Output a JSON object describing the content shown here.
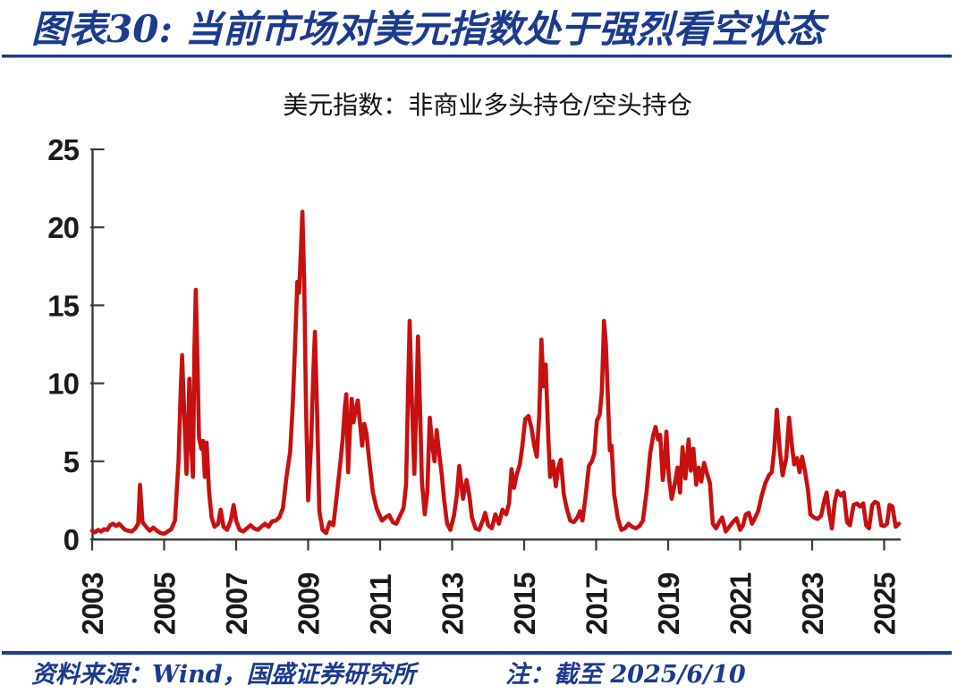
{
  "header": {
    "title_prefix": "图表30:",
    "title": "当前市场对美元指数处于强烈看空状态"
  },
  "footer": {
    "source": "资料来源：Wind，国盛证券研究所",
    "note": "注：截至 2025/6/10"
  },
  "colors": {
    "accent_blue": "#1C3A8E",
    "line_red": "#C81010",
    "axis_gray": "#3A3A3A",
    "tick_text": "#1A1A1A"
  },
  "chart_data": {
    "type": "line",
    "title": "美元指数：非商业多头持仓/空头持仓",
    "xlabel": "",
    "ylabel": "",
    "xlim": [
      2003,
      2025.46
    ],
    "ylim": [
      0,
      25
    ],
    "grid": false,
    "legend": "none",
    "x_tick_rotation": 90,
    "x_ticks": [
      {
        "value": 2003,
        "label": "2003"
      },
      {
        "value": 2005,
        "label": "2005"
      },
      {
        "value": 2007,
        "label": "2007"
      },
      {
        "value": 2009,
        "label": "2009"
      },
      {
        "value": 2011,
        "label": "2011"
      },
      {
        "value": 2013,
        "label": "2013"
      },
      {
        "value": 2015,
        "label": "2015"
      },
      {
        "value": 2017,
        "label": "2017"
      },
      {
        "value": 2019,
        "label": "2019"
      },
      {
        "value": 2021,
        "label": "2021"
      },
      {
        "value": 2023,
        "label": "2023"
      },
      {
        "value": 2025,
        "label": "2025"
      }
    ],
    "y_ticks": [
      {
        "value": 0,
        "label": "0"
      },
      {
        "value": 5,
        "label": "5"
      },
      {
        "value": 10,
        "label": "10"
      },
      {
        "value": 15,
        "label": "15"
      },
      {
        "value": 20,
        "label": "20"
      },
      {
        "value": 25,
        "label": "25"
      }
    ],
    "series": [
      {
        "name": "美元指数：非商业多头持仓/空头持仓",
        "color": "#C81010",
        "points": [
          [
            2003.0,
            0.55
          ],
          [
            2003.08,
            0.45
          ],
          [
            2003.17,
            0.6
          ],
          [
            2003.25,
            0.5
          ],
          [
            2003.33,
            0.65
          ],
          [
            2003.42,
            0.6
          ],
          [
            2003.5,
            0.9
          ],
          [
            2003.58,
            1.0
          ],
          [
            2003.67,
            0.85
          ],
          [
            2003.75,
            1.0
          ],
          [
            2003.83,
            0.8
          ],
          [
            2003.92,
            0.6
          ],
          [
            2004.0,
            0.55
          ],
          [
            2004.1,
            0.5
          ],
          [
            2004.2,
            0.7
          ],
          [
            2004.28,
            1.0
          ],
          [
            2004.33,
            3.5
          ],
          [
            2004.4,
            1.1
          ],
          [
            2004.5,
            0.8
          ],
          [
            2004.6,
            0.55
          ],
          [
            2004.7,
            0.75
          ],
          [
            2004.8,
            0.55
          ],
          [
            2004.9,
            0.4
          ],
          [
            2005.0,
            0.35
          ],
          [
            2005.1,
            0.5
          ],
          [
            2005.2,
            0.65
          ],
          [
            2005.3,
            1.2
          ],
          [
            2005.4,
            5.0
          ],
          [
            2005.46,
            9.5
          ],
          [
            2005.5,
            11.8
          ],
          [
            2005.56,
            8.0
          ],
          [
            2005.62,
            4.2
          ],
          [
            2005.66,
            6.5
          ],
          [
            2005.7,
            10.3
          ],
          [
            2005.75,
            6.2
          ],
          [
            2005.8,
            4.0
          ],
          [
            2005.84,
            12.0
          ],
          [
            2005.88,
            16.0
          ],
          [
            2005.93,
            11.0
          ],
          [
            2005.97,
            6.5
          ],
          [
            2006.03,
            5.8
          ],
          [
            2006.08,
            6.3
          ],
          [
            2006.13,
            4.0
          ],
          [
            2006.18,
            6.2
          ],
          [
            2006.25,
            3.0
          ],
          [
            2006.32,
            1.4
          ],
          [
            2006.4,
            0.8
          ],
          [
            2006.5,
            1.0
          ],
          [
            2006.57,
            1.9
          ],
          [
            2006.65,
            0.8
          ],
          [
            2006.75,
            0.6
          ],
          [
            2006.85,
            1.2
          ],
          [
            2006.93,
            2.2
          ],
          [
            2007.0,
            1.2
          ],
          [
            2007.1,
            0.6
          ],
          [
            2007.2,
            0.5
          ],
          [
            2007.3,
            0.7
          ],
          [
            2007.4,
            0.9
          ],
          [
            2007.5,
            0.7
          ],
          [
            2007.6,
            0.6
          ],
          [
            2007.7,
            0.8
          ],
          [
            2007.8,
            1.0
          ],
          [
            2007.9,
            0.8
          ],
          [
            2008.0,
            1.15
          ],
          [
            2008.1,
            1.2
          ],
          [
            2008.2,
            1.4
          ],
          [
            2008.3,
            2.0
          ],
          [
            2008.4,
            4.0
          ],
          [
            2008.5,
            5.6
          ],
          [
            2008.57,
            8.5
          ],
          [
            2008.63,
            12.0
          ],
          [
            2008.7,
            16.5
          ],
          [
            2008.75,
            15.8
          ],
          [
            2008.8,
            18.5
          ],
          [
            2008.84,
            21.0
          ],
          [
            2008.89,
            16.5
          ],
          [
            2008.94,
            8.5
          ],
          [
            2009.0,
            2.5
          ],
          [
            2009.08,
            6.0
          ],
          [
            2009.15,
            11.0
          ],
          [
            2009.19,
            13.3
          ],
          [
            2009.25,
            8.0
          ],
          [
            2009.31,
            1.8
          ],
          [
            2009.4,
            0.6
          ],
          [
            2009.5,
            0.4
          ],
          [
            2009.6,
            1.1
          ],
          [
            2009.7,
            0.9
          ],
          [
            2009.8,
            2.9
          ],
          [
            2009.9,
            5.0
          ],
          [
            2009.96,
            6.4
          ],
          [
            2010.02,
            8.5
          ],
          [
            2010.06,
            9.3
          ],
          [
            2010.11,
            4.3
          ],
          [
            2010.16,
            7.0
          ],
          [
            2010.21,
            9.0
          ],
          [
            2010.26,
            7.5
          ],
          [
            2010.32,
            8.3
          ],
          [
            2010.38,
            8.9
          ],
          [
            2010.45,
            7.2
          ],
          [
            2010.5,
            6.0
          ],
          [
            2010.56,
            7.4
          ],
          [
            2010.62,
            6.8
          ],
          [
            2010.7,
            5.0
          ],
          [
            2010.8,
            3.0
          ],
          [
            2010.9,
            2.0
          ],
          [
            2010.97,
            1.6
          ],
          [
            2011.05,
            1.2
          ],
          [
            2011.15,
            1.4
          ],
          [
            2011.25,
            1.55
          ],
          [
            2011.35,
            1.1
          ],
          [
            2011.45,
            1.0
          ],
          [
            2011.55,
            1.5
          ],
          [
            2011.65,
            2.0
          ],
          [
            2011.72,
            3.5
          ],
          [
            2011.78,
            10.0
          ],
          [
            2011.82,
            14.0
          ],
          [
            2011.88,
            9.0
          ],
          [
            2011.95,
            4.2
          ],
          [
            2012.0,
            8.0
          ],
          [
            2012.05,
            13.0
          ],
          [
            2012.1,
            9.0
          ],
          [
            2012.16,
            3.7
          ],
          [
            2012.24,
            1.6
          ],
          [
            2012.31,
            3.0
          ],
          [
            2012.38,
            7.8
          ],
          [
            2012.45,
            6.0
          ],
          [
            2012.51,
            5.0
          ],
          [
            2012.57,
            7.0
          ],
          [
            2012.64,
            5.5
          ],
          [
            2012.71,
            4.2
          ],
          [
            2012.78,
            2.5
          ],
          [
            2012.86,
            1.0
          ],
          [
            2012.95,
            0.6
          ],
          [
            2013.05,
            1.5
          ],
          [
            2013.13,
            2.8
          ],
          [
            2013.2,
            4.7
          ],
          [
            2013.3,
            2.6
          ],
          [
            2013.4,
            3.8
          ],
          [
            2013.48,
            2.8
          ],
          [
            2013.55,
            1.4
          ],
          [
            2013.65,
            0.7
          ],
          [
            2013.75,
            0.6
          ],
          [
            2013.85,
            1.2
          ],
          [
            2013.92,
            1.7
          ],
          [
            2014.0,
            0.9
          ],
          [
            2014.1,
            0.7
          ],
          [
            2014.2,
            1.6
          ],
          [
            2014.3,
            1.0
          ],
          [
            2014.4,
            1.9
          ],
          [
            2014.5,
            1.6
          ],
          [
            2014.58,
            2.3
          ],
          [
            2014.65,
            4.5
          ],
          [
            2014.72,
            3.3
          ],
          [
            2014.8,
            4.2
          ],
          [
            2014.88,
            4.8
          ],
          [
            2014.95,
            6.0
          ],
          [
            2015.03,
            7.7
          ],
          [
            2015.12,
            7.9
          ],
          [
            2015.2,
            7.2
          ],
          [
            2015.28,
            6.0
          ],
          [
            2015.35,
            5.3
          ],
          [
            2015.42,
            8.0
          ],
          [
            2015.48,
            12.8
          ],
          [
            2015.54,
            9.8
          ],
          [
            2015.6,
            11.2
          ],
          [
            2015.67,
            6.5
          ],
          [
            2015.72,
            4.0
          ],
          [
            2015.8,
            5.0
          ],
          [
            2015.88,
            3.4
          ],
          [
            2015.95,
            4.6
          ],
          [
            2016.02,
            5.1
          ],
          [
            2016.1,
            2.9
          ],
          [
            2016.18,
            2.0
          ],
          [
            2016.28,
            1.2
          ],
          [
            2016.38,
            1.1
          ],
          [
            2016.48,
            1.4
          ],
          [
            2016.55,
            1.8
          ],
          [
            2016.62,
            1.2
          ],
          [
            2016.7,
            2.6
          ],
          [
            2016.8,
            4.7
          ],
          [
            2016.88,
            5.0
          ],
          [
            2016.95,
            5.5
          ],
          [
            2017.02,
            7.6
          ],
          [
            2017.1,
            8.0
          ],
          [
            2017.16,
            9.5
          ],
          [
            2017.22,
            14.0
          ],
          [
            2017.27,
            12.5
          ],
          [
            2017.33,
            8.8
          ],
          [
            2017.38,
            5.7
          ],
          [
            2017.43,
            6.0
          ],
          [
            2017.5,
            2.9
          ],
          [
            2017.6,
            1.4
          ],
          [
            2017.7,
            0.6
          ],
          [
            2017.8,
            0.7
          ],
          [
            2017.9,
            1.0
          ],
          [
            2018.0,
            0.8
          ],
          [
            2018.1,
            0.7
          ],
          [
            2018.2,
            0.85
          ],
          [
            2018.3,
            1.2
          ],
          [
            2018.4,
            3.0
          ],
          [
            2018.5,
            5.5
          ],
          [
            2018.58,
            6.6
          ],
          [
            2018.65,
            7.2
          ],
          [
            2018.72,
            6.4
          ],
          [
            2018.78,
            6.7
          ],
          [
            2018.85,
            3.8
          ],
          [
            2018.9,
            4.8
          ],
          [
            2018.95,
            6.9
          ],
          [
            2019.02,
            4.0
          ],
          [
            2019.1,
            2.6
          ],
          [
            2019.18,
            3.5
          ],
          [
            2019.26,
            4.6
          ],
          [
            2019.33,
            3.0
          ],
          [
            2019.4,
            5.9
          ],
          [
            2019.48,
            3.9
          ],
          [
            2019.57,
            6.4
          ],
          [
            2019.63,
            4.4
          ],
          [
            2019.7,
            5.8
          ],
          [
            2019.78,
            3.5
          ],
          [
            2019.85,
            4.6
          ],
          [
            2019.92,
            3.7
          ],
          [
            2020.0,
            4.9
          ],
          [
            2020.08,
            4.2
          ],
          [
            2020.16,
            3.6
          ],
          [
            2020.24,
            1.0
          ],
          [
            2020.33,
            0.7
          ],
          [
            2020.42,
            1.1
          ],
          [
            2020.5,
            1.4
          ],
          [
            2020.6,
            0.5
          ],
          [
            2020.7,
            0.8
          ],
          [
            2020.8,
            1.1
          ],
          [
            2020.9,
            1.35
          ],
          [
            2021.0,
            0.6
          ],
          [
            2021.08,
            0.9
          ],
          [
            2021.16,
            1.6
          ],
          [
            2021.24,
            1.7
          ],
          [
            2021.33,
            1.0
          ],
          [
            2021.42,
            1.4
          ],
          [
            2021.5,
            1.8
          ],
          [
            2021.6,
            2.8
          ],
          [
            2021.7,
            3.6
          ],
          [
            2021.8,
            4.1
          ],
          [
            2021.88,
            4.3
          ],
          [
            2021.95,
            5.8
          ],
          [
            2022.02,
            8.3
          ],
          [
            2022.1,
            5.7
          ],
          [
            2022.18,
            4.1
          ],
          [
            2022.28,
            5.2
          ],
          [
            2022.36,
            7.8
          ],
          [
            2022.44,
            6.0
          ],
          [
            2022.5,
            4.8
          ],
          [
            2022.58,
            5.2
          ],
          [
            2022.65,
            4.3
          ],
          [
            2022.72,
            5.3
          ],
          [
            2022.8,
            4.4
          ],
          [
            2022.88,
            3.2
          ],
          [
            2022.95,
            1.6
          ],
          [
            2023.05,
            1.4
          ],
          [
            2023.15,
            1.3
          ],
          [
            2023.25,
            1.5
          ],
          [
            2023.33,
            2.4
          ],
          [
            2023.4,
            3.0
          ],
          [
            2023.48,
            1.6
          ],
          [
            2023.55,
            0.7
          ],
          [
            2023.63,
            2.4
          ],
          [
            2023.7,
            3.1
          ],
          [
            2023.8,
            2.8
          ],
          [
            2023.88,
            3.0
          ],
          [
            2023.97,
            1.1
          ],
          [
            2024.05,
            0.9
          ],
          [
            2024.15,
            2.2
          ],
          [
            2024.25,
            2.3
          ],
          [
            2024.33,
            2.1
          ],
          [
            2024.42,
            2.3
          ],
          [
            2024.5,
            0.9
          ],
          [
            2024.58,
            0.7
          ],
          [
            2024.67,
            2.2
          ],
          [
            2024.75,
            2.4
          ],
          [
            2024.83,
            2.3
          ],
          [
            2024.92,
            0.9
          ],
          [
            2025.0,
            0.85
          ],
          [
            2025.08,
            1.0
          ],
          [
            2025.15,
            2.2
          ],
          [
            2025.23,
            2.1
          ],
          [
            2025.32,
            0.8
          ],
          [
            2025.41,
            1.0
          ]
        ]
      }
    ]
  }
}
